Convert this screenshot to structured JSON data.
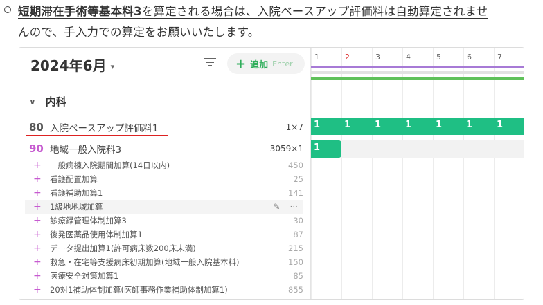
{
  "note": {
    "bold_part": "短期滞在手術等基本料3",
    "line1_rest": "を算定される場合は、入院ベースアップ評価料は自動算定されませ",
    "line2": "んので、手入力での算定をお願いいたします。"
  },
  "header": {
    "month": "2024年6月",
    "month_caret": "▾",
    "add_label": "追加",
    "add_key": "Enter"
  },
  "department": {
    "name": "内科",
    "chevron": "∨"
  },
  "main_rows": [
    {
      "code": "80",
      "name": "入院ベースアップ評価料1",
      "qty": "1×7",
      "code_color": "#555555"
    },
    {
      "code": "90",
      "name": "地域一般入院料3",
      "qty": "3059×1",
      "code_color": "#c65bd0"
    }
  ],
  "sub_items": [
    {
      "name": "一般病棟入院期間加算(14日以内)",
      "value": "450"
    },
    {
      "name": "看護配置加算",
      "value": "25"
    },
    {
      "name": "看護補助加算1",
      "value": "141"
    },
    {
      "name": "1級地地域加算",
      "value": ""
    },
    {
      "name": "診療録管理体制加算3",
      "value": "30"
    },
    {
      "name": "後発医薬品使用体制加算1",
      "value": "87"
    },
    {
      "name": "データ提出加算1(許可病床数200床未満)",
      "value": "215"
    },
    {
      "name": "救急・在宅等支援病床初期加算(地域一般入院基本料)",
      "value": "150"
    },
    {
      "name": "医療安全対策加算1",
      "value": "85"
    },
    {
      "name": "20対1補助体制加算(医師事務作業補助体制加算1)",
      "value": "855"
    }
  ],
  "calendar": {
    "days": [
      "1",
      "2",
      "3",
      "4",
      "5",
      "6",
      "7"
    ],
    "base_up_counts": [
      "1",
      "1",
      "1",
      "1",
      "1",
      "1",
      "1"
    ],
    "ward_counts": [
      "1"
    ]
  },
  "colors": {
    "accent_green": "#1fbf84",
    "plus_purple": "#c65bd0",
    "add_green": "#2fae5b",
    "underline_red": "#dd2222"
  },
  "icons": [
    "filter-icon",
    "plus-icon",
    "pencil-icon",
    "more-icon",
    "chevron-down-icon"
  ]
}
